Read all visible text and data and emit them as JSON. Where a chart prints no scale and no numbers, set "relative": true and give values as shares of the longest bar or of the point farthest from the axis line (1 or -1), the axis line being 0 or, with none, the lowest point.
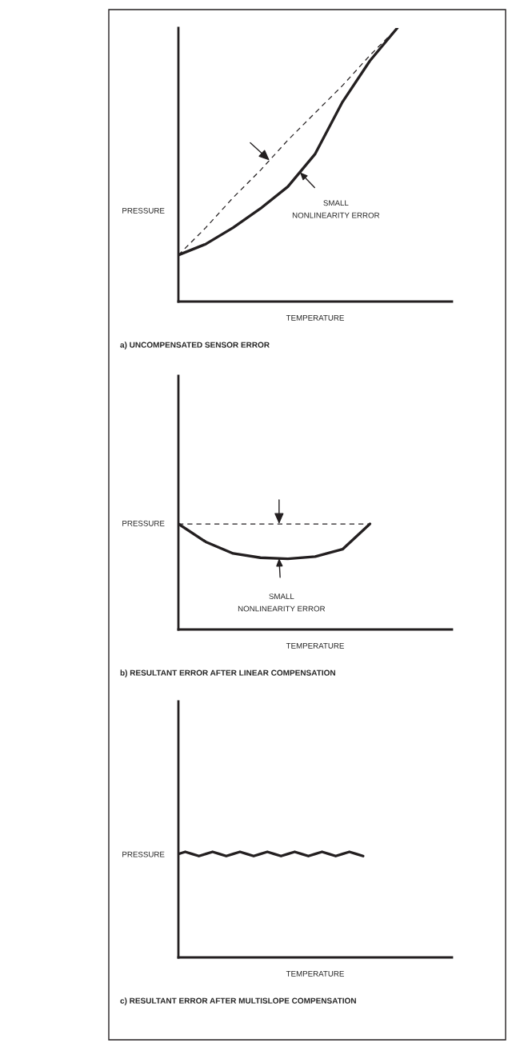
{
  "chart_data": [
    {
      "type": "line",
      "title": "a) UNCOMPENSATED SENSOR ERROR",
      "xlabel": "TEMPERATURE",
      "ylabel": "PRESSURE",
      "relative": true,
      "tick_labels": false,
      "categories": [
        null,
        null,
        null,
        null,
        null,
        null,
        null,
        null,
        null,
        null,
        null
      ],
      "series": [
        {
          "color": "#231f20",
          "line_style": "solid",
          "values": [
            0.17,
            0.21,
            0.27,
            0.34,
            0.42,
            0.54,
            0.73,
            0.88,
            1.0,
            null,
            null
          ]
        },
        {
          "color": "#231f20",
          "line_style": "dashed",
          "values": [
            0.17,
            0.27,
            0.38,
            0.48,
            0.59,
            0.69,
            0.79,
            0.9,
            1.0,
            null,
            null
          ]
        }
      ],
      "annotations": [
        "SMALL\nNONLINEARITY ERROR"
      ]
    },
    {
      "type": "line",
      "title": "b) RESULTANT ERROR AFTER LINEAR COMPENSATION",
      "xlabel": "TEMPERATURE",
      "ylabel": "PRESSURE",
      "relative": true,
      "tick_labels": false,
      "categories": [
        null,
        null,
        null,
        null,
        null,
        null,
        null,
        null,
        null,
        null,
        null
      ],
      "series": [
        {
          "color": "#231f20",
          "line_style": "solid",
          "values": [
            1.0,
            0.83,
            0.72,
            0.68,
            0.67,
            0.69,
            0.76,
            1.0,
            null,
            null,
            null
          ]
        },
        {
          "color": "#231f20",
          "line_style": "dashed",
          "values": [
            1.0,
            1.0,
            1.0,
            1.0,
            1.0,
            1.0,
            1.0,
            1.0,
            null,
            null,
            null
          ]
        }
      ],
      "annotations": [
        "SMALL\nNONLINEARITY ERROR"
      ]
    },
    {
      "type": "line",
      "title": "c) RESULTANT ERROR AFTER MULTISLOPE COMPENSATION",
      "xlabel": "TEMPERATURE",
      "ylabel": "PRESSURE",
      "relative": true,
      "tick_labels": false,
      "categories": [
        null,
        null,
        null,
        null,
        null,
        null,
        null,
        null,
        null,
        null,
        null,
        null,
        null,
        null,
        null,
        null,
        null,
        null,
        null,
        null,
        null,
        null,
        null,
        null,
        null,
        null,
        null,
        null,
        null,
        null,
        null,
        null,
        null,
        null,
        null,
        null,
        null,
        null,
        null,
        null,
        null
      ],
      "series": [
        {
          "color": "#231f20",
          "line_style": "solid",
          "values": [
            0.98,
            1.0,
            0.98,
            0.96,
            0.98,
            1.0,
            0.98,
            0.96,
            0.98,
            1.0,
            0.98,
            0.96,
            0.98,
            1.0,
            0.98,
            0.96,
            0.98,
            1.0,
            0.98,
            0.96,
            0.98,
            1.0,
            0.98,
            0.96,
            0.98,
            1.0,
            0.98,
            0.96,
            null,
            null,
            null,
            null,
            null,
            null,
            null,
            null,
            null,
            null,
            null,
            null,
            null
          ]
        }
      ]
    }
  ]
}
